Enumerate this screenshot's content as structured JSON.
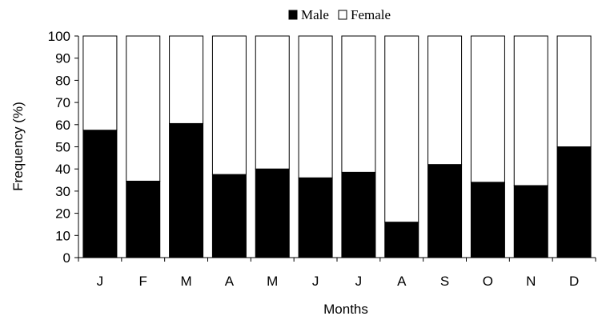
{
  "chart_data": {
    "type": "bar",
    "stacked": true,
    "normalized_to": 100,
    "categories": [
      "J",
      "F",
      "M",
      "A",
      "M",
      "J",
      "J",
      "A",
      "S",
      "O",
      "N",
      "D"
    ],
    "series": [
      {
        "name": "Male",
        "color": "#000000",
        "values": [
          57.5,
          34.5,
          60.5,
          37.5,
          40,
          36,
          38.5,
          16,
          42,
          34,
          32.5,
          50
        ]
      },
      {
        "name": "Female",
        "color": "#ffffff",
        "values": [
          42.5,
          65.5,
          39.5,
          62.5,
          60,
          64,
          61.5,
          84,
          58,
          66,
          67.5,
          50
        ]
      }
    ],
    "title": "",
    "xlabel": "Months",
    "ylabel": "Frequency (%)",
    "ylim": [
      0,
      100
    ],
    "yticks": [
      0,
      10,
      20,
      30,
      40,
      50,
      60,
      70,
      80,
      90,
      100
    ],
    "grid": false,
    "legend_position": "top"
  }
}
